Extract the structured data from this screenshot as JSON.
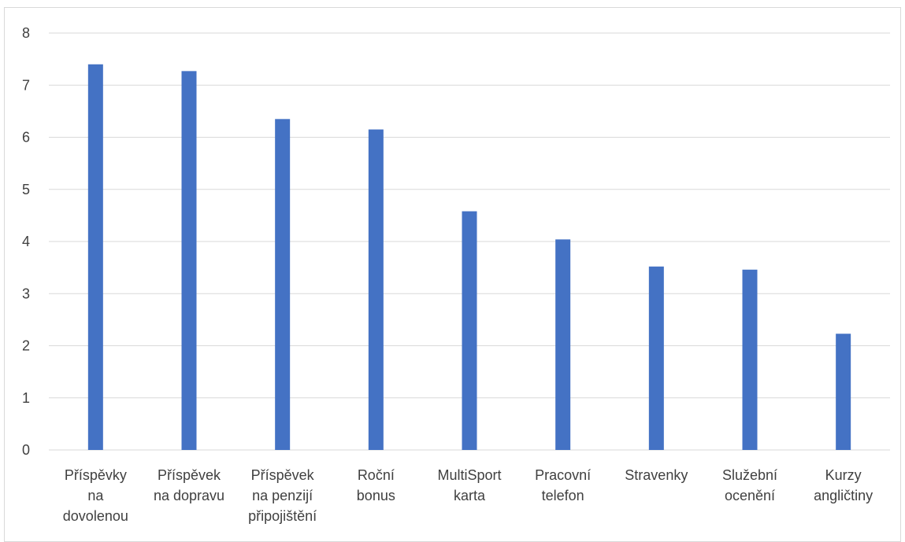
{
  "chart_data": {
    "type": "bar",
    "title": "",
    "xlabel": "",
    "ylabel": "",
    "categories": [
      [
        "Příspěvky",
        "na",
        "dovolenou"
      ],
      [
        "Příspěvek",
        "na dopravu"
      ],
      [
        "Příspěvek",
        "na penzijí",
        "připojištění"
      ],
      [
        "Roční",
        "bonus"
      ],
      [
        "MultiSport",
        "karta"
      ],
      [
        "Pracovní",
        "telefon"
      ],
      [
        "Stravenky"
      ],
      [
        "Služební",
        "ocenění"
      ],
      [
        "Kurzy",
        "angličtiny"
      ]
    ],
    "values": [
      7.4,
      7.27,
      6.35,
      6.15,
      4.58,
      4.04,
      3.52,
      3.46,
      2.23
    ],
    "ylim": [
      0,
      8
    ],
    "yticks": [
      "0",
      "1",
      "2",
      "3",
      "4",
      "5",
      "6",
      "7",
      "8"
    ],
    "grid": true,
    "legend": "none",
    "colors": {
      "bar": "#4472C4",
      "grid": "#d9d9d9",
      "text": "#404040"
    }
  }
}
